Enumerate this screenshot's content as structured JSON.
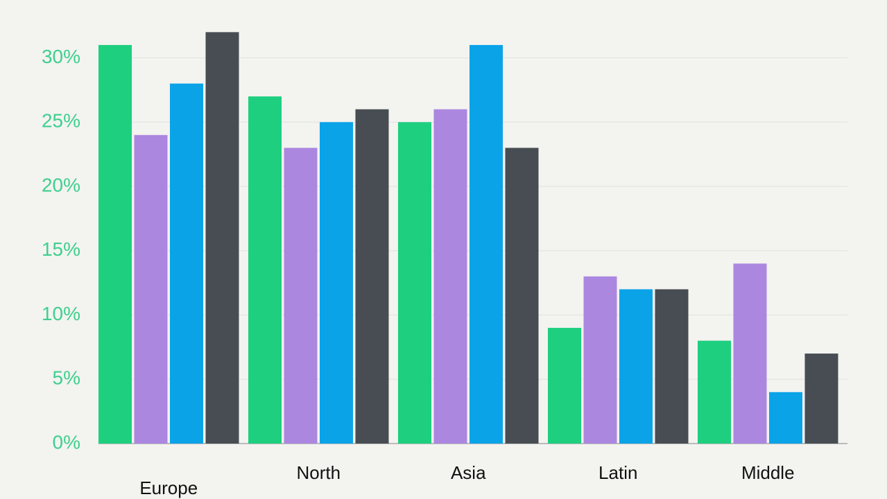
{
  "chart_data": {
    "type": "bar",
    "categories": [
      "Europe",
      "North",
      "Asia",
      "Latin",
      "Middle"
    ],
    "series": [
      {
        "color": "#1ecf7f",
        "values": [
          31,
          27,
          25,
          9,
          8
        ]
      },
      {
        "color": "#ab87e0",
        "values": [
          24,
          23,
          26,
          13,
          14
        ]
      },
      {
        "color": "#0aa3e8",
        "values": [
          28,
          25,
          31,
          12,
          4
        ]
      },
      {
        "color": "#474d52",
        "values": [
          32,
          26,
          23,
          12,
          7
        ]
      }
    ],
    "ylim": [
      0,
      34.5
    ],
    "yticks": [
      0,
      5,
      10,
      15,
      20,
      25,
      30
    ],
    "ytick_labels": [
      "0%",
      "5%",
      "10%",
      "15%",
      "20%",
      "25%",
      "30%"
    ],
    "grid": true
  }
}
